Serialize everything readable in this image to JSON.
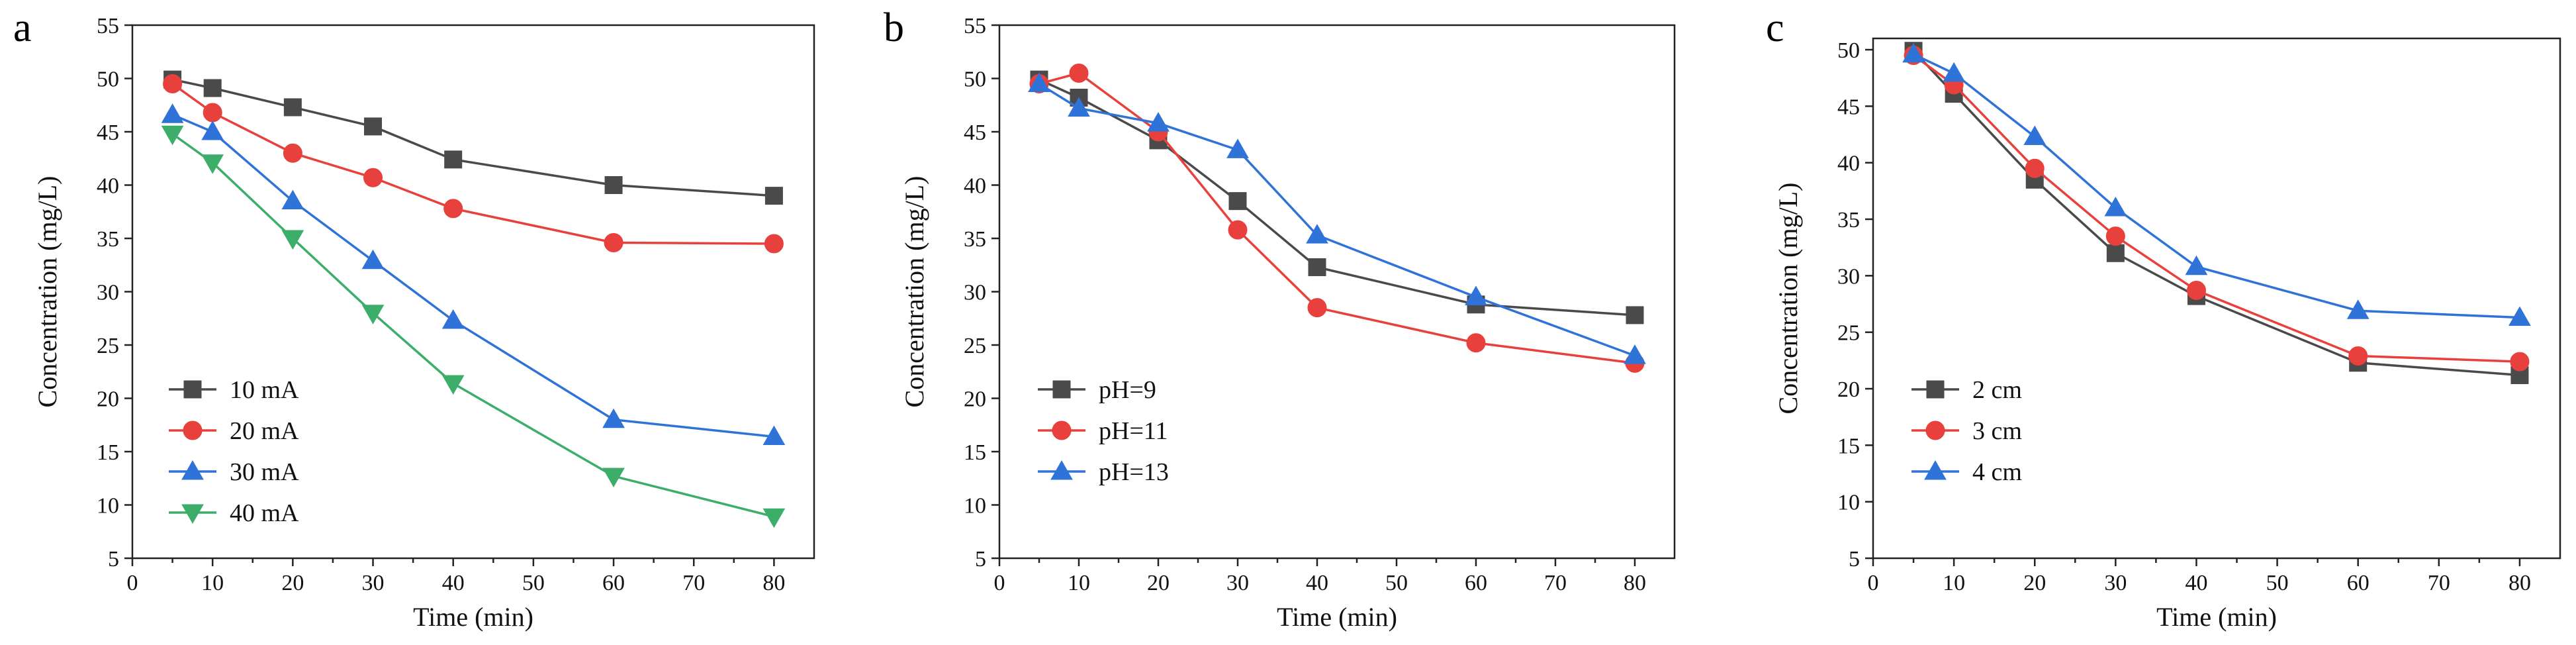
{
  "chart_data": [
    {
      "panel": "a",
      "type": "line",
      "title": "",
      "xlabel": "Time (min)",
      "ylabel": "Concentration (mg/L)",
      "xlim": [
        0,
        85
      ],
      "ylim": [
        5,
        55
      ],
      "xticks": [
        0,
        10,
        20,
        30,
        40,
        50,
        60,
        70,
        80
      ],
      "yticks": [
        5,
        10,
        15,
        20,
        25,
        30,
        35,
        40,
        45,
        50,
        55
      ],
      "x": [
        5,
        10,
        20,
        30,
        40,
        60,
        80
      ],
      "legend_position": "bottom-left",
      "series": [
        {
          "name": "10 mA",
          "color": "#4a4a4a",
          "marker": "square",
          "values": [
            49.9,
            49.1,
            47.3,
            45.5,
            42.4,
            40.0,
            39.0
          ]
        },
        {
          "name": "20 mA",
          "color": "#e8403c",
          "marker": "circle",
          "values": [
            49.5,
            46.8,
            43.0,
            40.7,
            37.8,
            34.6,
            34.5
          ]
        },
        {
          "name": "30 mA",
          "color": "#2f73d8",
          "marker": "triangle-up",
          "values": [
            46.6,
            45.0,
            38.5,
            32.9,
            27.3,
            18.0,
            16.4
          ]
        },
        {
          "name": "40 mA",
          "color": "#3cae6a",
          "marker": "triangle-down",
          "values": [
            44.8,
            42.1,
            35.0,
            28.0,
            21.4,
            12.7,
            8.9
          ]
        }
      ]
    },
    {
      "panel": "b",
      "type": "line",
      "title": "",
      "xlabel": "Time (min)",
      "ylabel": "Concentration (mg/L)",
      "xlim": [
        0,
        85
      ],
      "ylim": [
        5,
        55
      ],
      "xticks": [
        0,
        10,
        20,
        30,
        40,
        50,
        60,
        70,
        80
      ],
      "yticks": [
        5,
        10,
        15,
        20,
        25,
        30,
        35,
        40,
        45,
        50,
        55
      ],
      "x": [
        5,
        10,
        20,
        30,
        40,
        60,
        80
      ],
      "legend_position": "bottom-left",
      "series": [
        {
          "name": "pH=9",
          "color": "#4a4a4a",
          "marker": "square",
          "values": [
            49.9,
            48.2,
            44.2,
            38.5,
            32.3,
            28.8,
            27.8
          ]
        },
        {
          "name": "pH=11",
          "color": "#e8403c",
          "marker": "circle",
          "values": [
            49.5,
            50.5,
            45.0,
            35.8,
            28.5,
            25.2,
            23.3
          ]
        },
        {
          "name": "pH=13",
          "color": "#2f73d8",
          "marker": "triangle-up",
          "values": [
            49.5,
            47.2,
            45.8,
            43.3,
            35.3,
            29.5,
            24.0
          ]
        }
      ]
    },
    {
      "panel": "c",
      "type": "line",
      "title": "",
      "xlabel": "Time (min)",
      "ylabel": "Concentration (mg/L)",
      "xlim": [
        0,
        85
      ],
      "ylim": [
        5,
        51
      ],
      "xticks": [
        0,
        10,
        20,
        30,
        40,
        50,
        60,
        70,
        80
      ],
      "yticks": [
        5,
        10,
        15,
        20,
        25,
        30,
        35,
        40,
        45,
        50
      ],
      "x": [
        5,
        10,
        20,
        30,
        40,
        60,
        80
      ],
      "legend_position": "bottom-left",
      "series": [
        {
          "name": "2 cm",
          "color": "#4a4a4a",
          "marker": "square",
          "values": [
            49.9,
            46.1,
            38.5,
            32.0,
            28.2,
            22.3,
            21.2
          ]
        },
        {
          "name": "3 cm",
          "color": "#e8403c",
          "marker": "circle",
          "values": [
            49.5,
            46.9,
            39.5,
            33.5,
            28.7,
            22.9,
            22.4
          ]
        },
        {
          "name": "4 cm",
          "color": "#2f73d8",
          "marker": "triangle-up",
          "values": [
            49.6,
            47.9,
            42.3,
            36.0,
            30.8,
            26.9,
            26.3
          ]
        }
      ]
    }
  ]
}
